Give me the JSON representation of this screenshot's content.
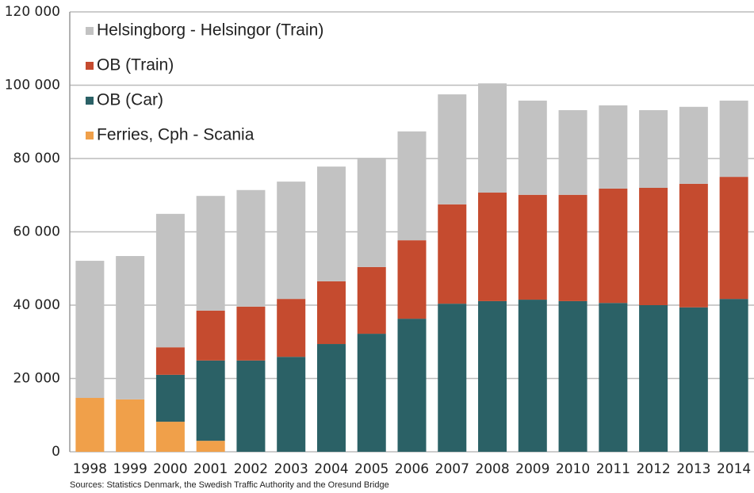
{
  "chart_data": {
    "type": "stacked-bar",
    "categories": [
      "1998",
      "1999",
      "2000",
      "2001",
      "2002",
      "2003",
      "2004",
      "2005",
      "2006",
      "2007",
      "2008",
      "2009",
      "2010",
      "2011",
      "2012",
      "2013",
      "2014"
    ],
    "series": [
      {
        "name": "Helsingborg - Helsingor (Train)",
        "color": "#c2c2c2",
        "values": [
          37400,
          39100,
          36400,
          31300,
          31800,
          32000,
          31300,
          29800,
          29700,
          30000,
          29800,
          25700,
          23100,
          22700,
          21200,
          21000,
          20800
        ]
      },
      {
        "name": "OB (Train)",
        "color": "#c54b2f",
        "values": [
          null,
          null,
          7500,
          13600,
          14700,
          15800,
          17100,
          18200,
          21400,
          27100,
          29600,
          28600,
          29000,
          31200,
          32000,
          33700,
          33300
        ]
      },
      {
        "name": "OB (Car)",
        "color": "#2b6166",
        "values": [
          null,
          null,
          12800,
          21900,
          24900,
          25900,
          29400,
          32200,
          36300,
          40400,
          41100,
          41500,
          41100,
          40600,
          40000,
          39400,
          41700
        ]
      },
      {
        "name": "Ferries, Cph - Scania",
        "color": "#f0a04a",
        "values": [
          14700,
          14300,
          8200,
          3000,
          null,
          null,
          null,
          null,
          null,
          null,
          null,
          null,
          null,
          null,
          null,
          null,
          null
        ]
      }
    ],
    "ylim": [
      0,
      120000
    ],
    "yticks": [
      0,
      {
        "value": 20000,
        "label": "20 000"
      },
      {
        "value": 40000,
        "label": "40 000"
      },
      {
        "value": 60000,
        "label": "60 000"
      },
      {
        "value": 80000,
        "label": "80 000"
      },
      {
        "value": 100000,
        "label": "100 000"
      },
      {
        "value": 120000,
        "label": "120 000"
      }
    ],
    "grid": true,
    "legend": "top-left",
    "source": "Sources: Statistics Denmark, the Swedish Traffic Authority and the Oresund Bridge"
  }
}
